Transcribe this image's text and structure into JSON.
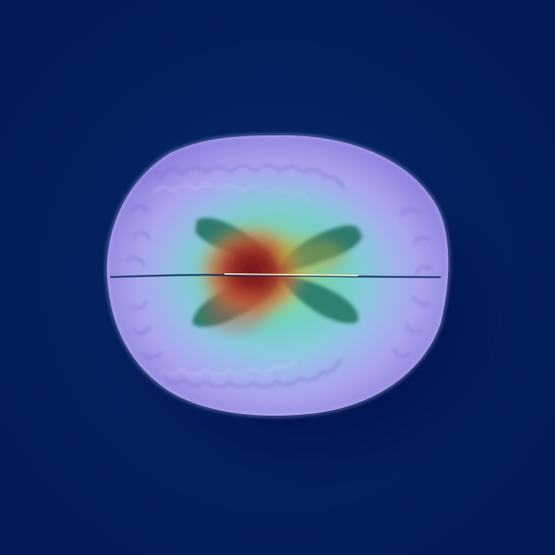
{
  "image": {
    "kind": "axial brain MRI slice with attention heatmap overlay",
    "background_color": "#03215e",
    "colors": {
      "tissue_outer": "#a7a6f0",
      "tissue_inner": "#8ad3d9",
      "ventricle": "#2f7d6c",
      "heatmap_hot": "#8b1a1f",
      "heatmap_warm": "#e3a84a",
      "heatmap_mid": "#b7d45b"
    }
  }
}
